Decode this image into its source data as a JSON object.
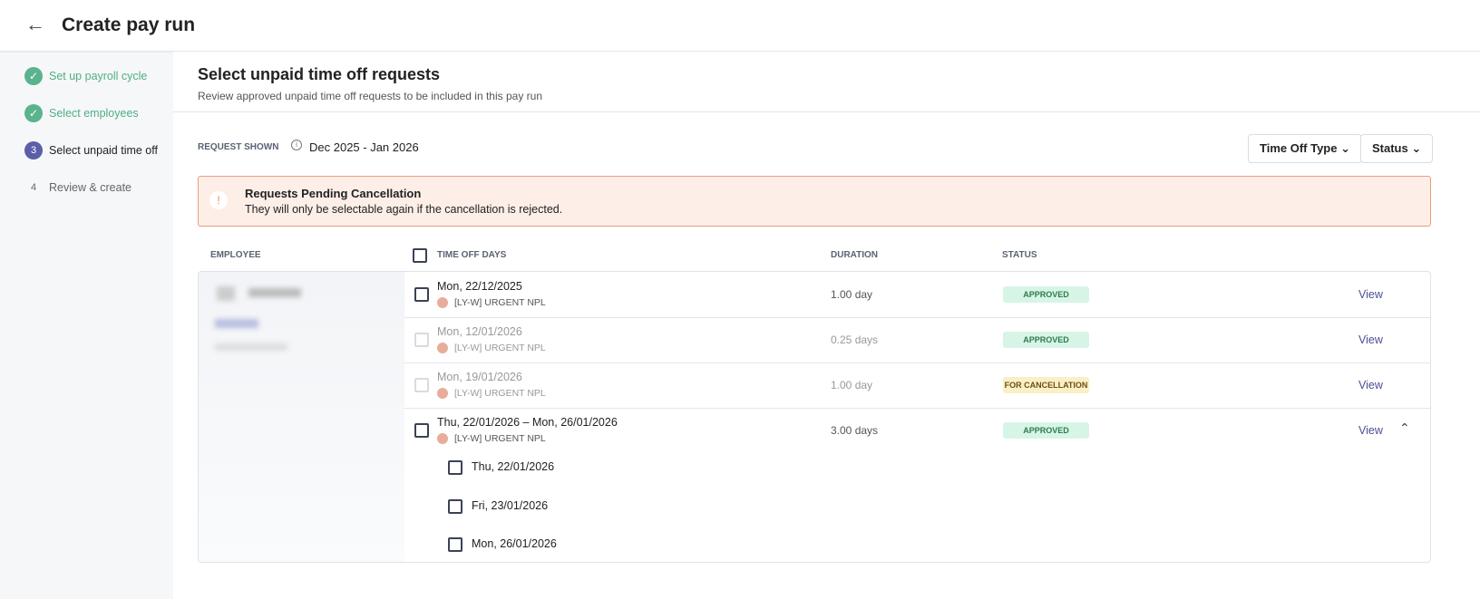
{
  "header": {
    "title": "Create pay run"
  },
  "steps": [
    {
      "label": "Set up payroll cycle",
      "done": true
    },
    {
      "label": "Select employees",
      "done": true
    },
    {
      "marker": "3",
      "label": "Select unpaid time off",
      "current": true
    },
    {
      "marker": "4",
      "label": "Review & create"
    }
  ],
  "section": {
    "title": "Select unpaid time off requests",
    "subtitle": "Review approved unpaid time off requests to be included in this pay run"
  },
  "filter": {
    "label": "REQUEST SHOWN",
    "range": "Dec 2025 - Jan 2026",
    "buttons": [
      "Time Off Type",
      "Status"
    ]
  },
  "alert": {
    "title": "Requests Pending Cancellation",
    "message": "They will only be selectable again if the cancellation is rejected."
  },
  "table": {
    "columns": [
      "EMPLOYEE",
      "TIME OFF DAYS",
      "DURATION",
      "STATUS"
    ],
    "rows": [
      {
        "date": "Mon, 22/12/2025",
        "type": "[LY-W] URGENT NPL",
        "duration": "1.00 day",
        "status": "APPROVED",
        "action": "View",
        "disabled": false
      },
      {
        "date": "Mon, 12/01/2026",
        "type": "[LY-W] URGENT NPL",
        "duration": "0.25 days",
        "status": "APPROVED",
        "action": "View",
        "disabled": true
      },
      {
        "date": "Mon, 19/01/2026",
        "type": "[LY-W] URGENT NPL",
        "duration": "1.00 day",
        "status": "FOR CANCELLATION",
        "action": "View",
        "disabled": true
      },
      {
        "date": "Thu, 22/01/2026 – Mon, 26/01/2026",
        "type": "[LY-W] URGENT NPL",
        "duration": "3.00 days",
        "status": "APPROVED",
        "action": "View",
        "disabled": false,
        "expanded": true,
        "days": [
          "Thu, 22/01/2026",
          "Fri, 23/01/2026",
          "Mon, 26/01/2026"
        ]
      }
    ]
  }
}
